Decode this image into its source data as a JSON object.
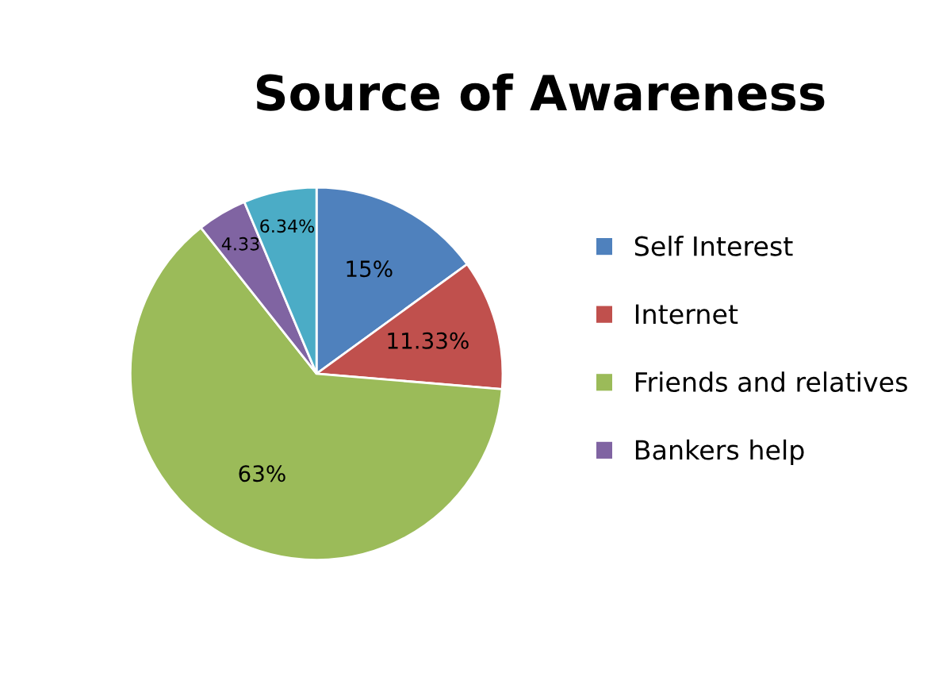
{
  "chart_data": {
    "type": "pie",
    "title": "Source of Awareness",
    "categories": [
      "Self Interest",
      "Internet",
      "Friends and relatives",
      "Bankers help",
      null
    ],
    "values": [
      15,
      11.33,
      63,
      4.33,
      6.34
    ],
    "colors": [
      "#4f81bd",
      "#c0504d",
      "#9bbb59",
      "#8064a2",
      "#4bacc6"
    ],
    "value_labels": [
      "15%",
      "11.33%",
      "63%",
      "4.33",
      "6.34%"
    ],
    "legend": "right"
  }
}
